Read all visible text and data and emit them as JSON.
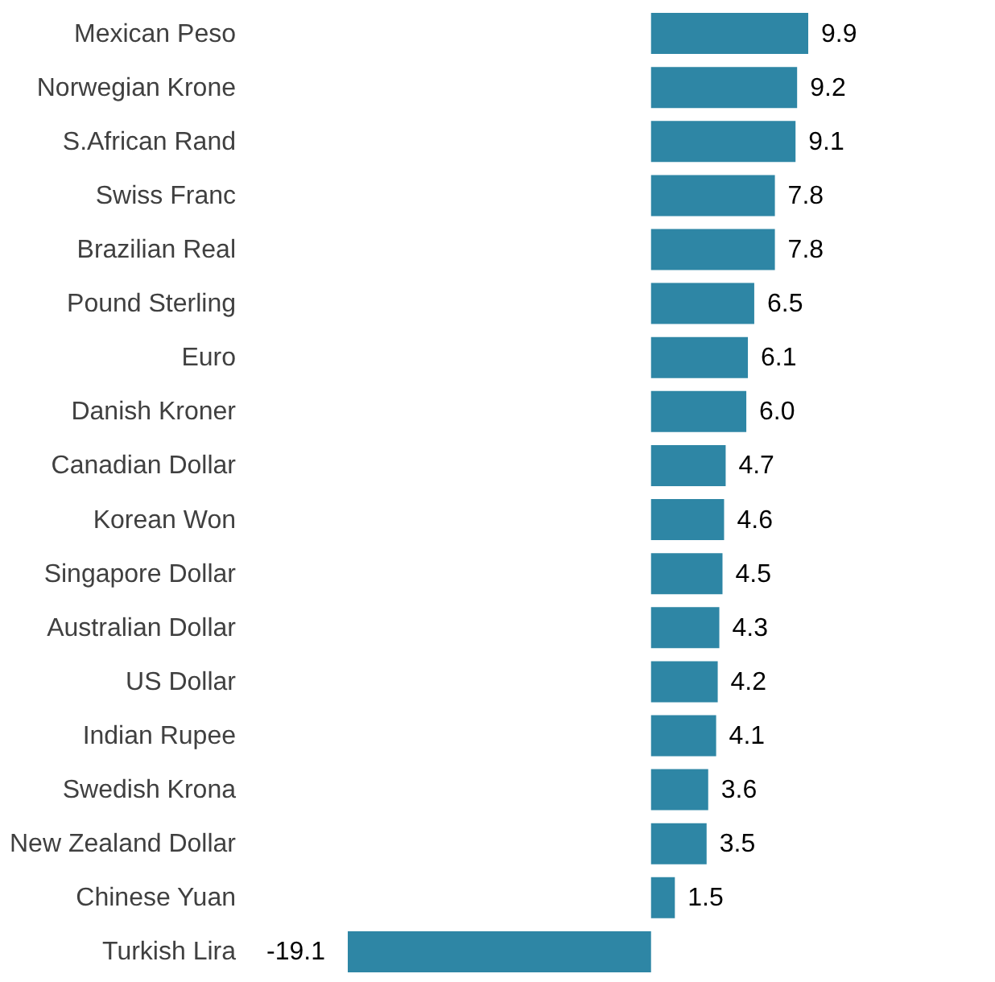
{
  "chart_data": {
    "type": "bar",
    "orientation": "horizontal",
    "color": "#2e86a5",
    "value_labels": [
      "9.9",
      "9.2",
      "9.1",
      "7.8",
      "7.8",
      "6.5",
      "6.1",
      "6.0",
      "4.7",
      "4.6",
      "4.5",
      "4.3",
      "4.2",
      "4.1",
      "3.6",
      "3.5",
      "1.5",
      "-19.1"
    ],
    "categories": [
      "Mexican Peso",
      "Norwegian Krone",
      "S.African Rand",
      "Swiss Franc",
      "Brazilian Real",
      "Pound Sterling",
      "Euro",
      "Danish Kroner",
      "Canadian Dollar",
      "Korean Won",
      "Singapore Dollar",
      "Australian Dollar",
      "US Dollar",
      "Indian Rupee",
      "Swedish Krona",
      "New Zealand Dollar",
      "Chinese Yuan",
      "Turkish Lira"
    ],
    "values": [
      9.9,
      9.2,
      9.1,
      7.8,
      7.8,
      6.5,
      6.1,
      6.0,
      4.7,
      4.6,
      4.5,
      4.3,
      4.2,
      4.1,
      3.6,
      3.5,
      1.5,
      -19.1
    ]
  }
}
